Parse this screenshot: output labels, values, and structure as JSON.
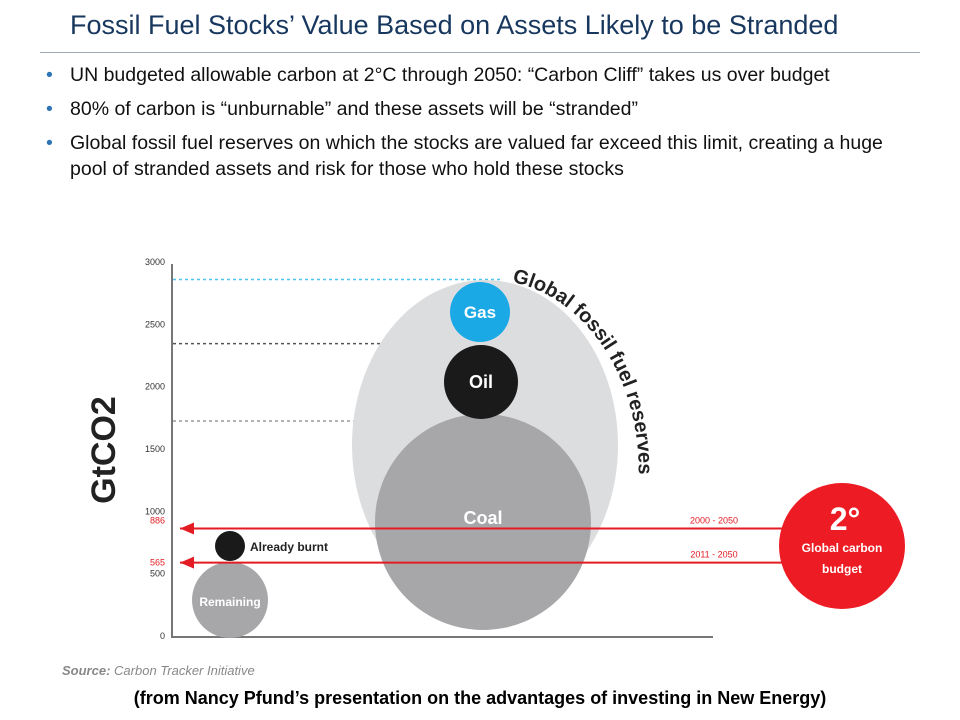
{
  "title": "Fossil Fuel Stocks’ Value Based on Assets Likely to be Stranded",
  "bullets": [
    "UN budgeted allowable carbon at 2°C through 2050: “Carbon Cliff” takes us over budget",
    "80% of carbon is “unburnable” and these assets will be “stranded”",
    "Global fossil fuel reserves on which the stocks are valued far exceed this limit, creating a huge pool of stranded assets and risk for those who hold these stocks"
  ],
  "chart_data": {
    "type": "bubble",
    "ylabel": "GtCO2",
    "ylim": [
      0,
      3000
    ],
    "yticks": [
      "0",
      "500",
      "1000",
      "1500",
      "2000",
      "2500",
      "3000"
    ],
    "red_ticks": [
      "565",
      "886"
    ],
    "arc_label": "Global fossil fuel reserves",
    "bubbles": [
      {
        "label": "Remaining",
        "color": "#a7a7aa"
      },
      {
        "label": "Already burnt",
        "color": "#1a1a1a"
      },
      {
        "label": "Coal",
        "color": "#a7a7aa"
      },
      {
        "label": "Oil",
        "color": "#1a1a1a"
      },
      {
        "label": "Gas",
        "color": "#1ba9e5"
      }
    ],
    "stack_levels": [
      1725,
      2345,
      2860
    ],
    "budget_lines": [
      {
        "label": "2000 - 2050",
        "value": 886
      },
      {
        "label": "2011 - 2050",
        "value": 565
      }
    ],
    "budget_badge": {
      "big": "2°",
      "text": "Global carbon budget",
      "color": "#ed1c24"
    }
  },
  "source_label": "Source:",
  "source_text": "Carbon Tracker Initiative",
  "caption": "(from Nancy Pfund’s presentation on the advantages of investing in New Energy)"
}
